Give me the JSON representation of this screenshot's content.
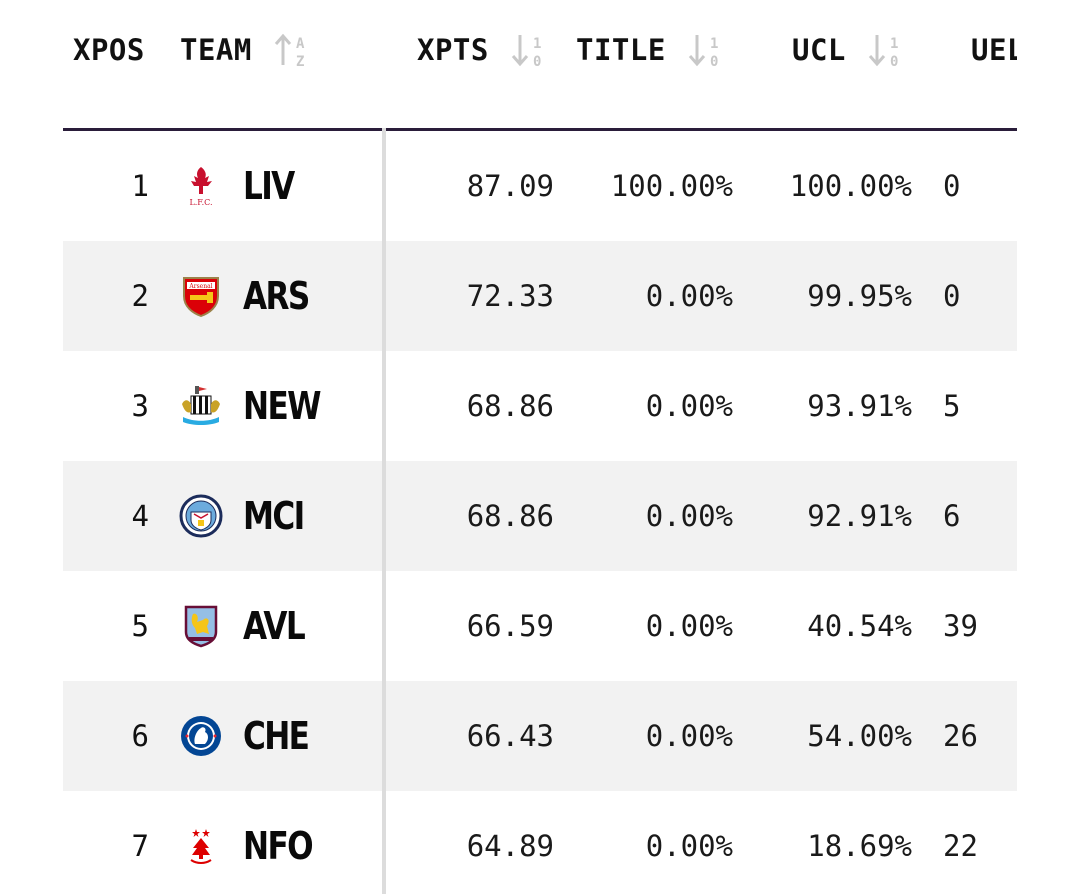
{
  "header": {
    "xpos": "XPOS",
    "team": "TEAM",
    "xpts": "XPTS",
    "title": "TITLE",
    "ucl": "UCL",
    "uel": "UEL"
  },
  "sort_icons": {
    "team": "sort-alpha-icon",
    "xpts": "sort-numeric-desc-icon",
    "title": "sort-numeric-desc-icon",
    "ucl": "sort-numeric-desc-icon"
  },
  "colors": {
    "header_rule": "#2a1d3a",
    "row_shade": "#f2f2f2",
    "divider": "#dcdcdc"
  },
  "rows": [
    {
      "pos": "1",
      "team": "LIV",
      "crest": "liverpool-crest-icon",
      "xpts": "87.09",
      "title": "100.00%",
      "ucl": "100.00%",
      "uel": "0"
    },
    {
      "pos": "2",
      "team": "ARS",
      "crest": "arsenal-crest-icon",
      "xpts": "72.33",
      "title": "0.00%",
      "ucl": "99.95%",
      "uel": "0"
    },
    {
      "pos": "3",
      "team": "NEW",
      "crest": "newcastle-crest-icon",
      "xpts": "68.86",
      "title": "0.00%",
      "ucl": "93.91%",
      "uel": "5"
    },
    {
      "pos": "4",
      "team": "MCI",
      "crest": "man-city-crest-icon",
      "xpts": "68.86",
      "title": "0.00%",
      "ucl": "92.91%",
      "uel": "6"
    },
    {
      "pos": "5",
      "team": "AVL",
      "crest": "aston-villa-crest-icon",
      "xpts": "66.59",
      "title": "0.00%",
      "ucl": "40.54%",
      "uel": "39"
    },
    {
      "pos": "6",
      "team": "CHE",
      "crest": "chelsea-crest-icon",
      "xpts": "66.43",
      "title": "0.00%",
      "ucl": "54.00%",
      "uel": "26"
    },
    {
      "pos": "7",
      "team": "NFO",
      "crest": "nottingham-forest-crest-icon",
      "xpts": "64.89",
      "title": "0.00%",
      "ucl": "18.69%",
      "uel": "22"
    }
  ]
}
